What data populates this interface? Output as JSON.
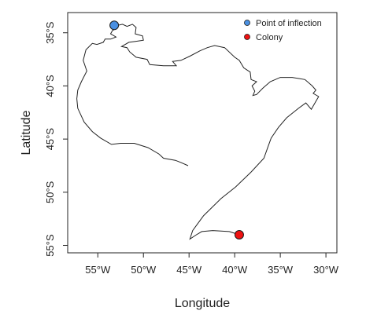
{
  "chart_data": {
    "type": "scatter",
    "xlabel": "Longitude",
    "ylabel": "Latitude",
    "xlim": [
      -58.3,
      -28.8
    ],
    "ylim": [
      -55.7,
      -33.1
    ],
    "x_ticks": [
      {
        "value": -55,
        "label": "55°W"
      },
      {
        "value": -50,
        "label": "50°W"
      },
      {
        "value": -45,
        "label": "45°W"
      },
      {
        "value": -40,
        "label": "40°W"
      },
      {
        "value": -35,
        "label": "35°W"
      },
      {
        "value": -30,
        "label": "30°W"
      }
    ],
    "y_ticks": [
      {
        "value": -35,
        "label": "35°S"
      },
      {
        "value": -40,
        "label": "40°S"
      },
      {
        "value": -45,
        "label": "45°S"
      },
      {
        "value": -50,
        "label": "50°S"
      },
      {
        "value": -55,
        "label": "55°S"
      }
    ],
    "legend": [
      {
        "label": "Point of inflection",
        "color": "#4a90e2"
      },
      {
        "label": "Colony",
        "color": "#ee1111"
      }
    ],
    "legend_position": "top-right",
    "grid": false,
    "points": {
      "inflection": {
        "x": -53.2,
        "y": -34.3
      },
      "colony": {
        "x": -39.5,
        "y": -54.0
      }
    },
    "track": [
      [
        -39.5,
        -54.0
      ],
      [
        -40.6,
        -53.7
      ],
      [
        -42.4,
        -53.6
      ],
      [
        -43.6,
        -53.7
      ],
      [
        -44.2,
        -54.0
      ],
      [
        -44.9,
        -54.4
      ],
      [
        -44.6,
        -53.6
      ],
      [
        -43.4,
        -52.2
      ],
      [
        -41.5,
        -50.6
      ],
      [
        -39.9,
        -49.5
      ],
      [
        -38.2,
        -48.1
      ],
      [
        -36.8,
        -46.8
      ],
      [
        -36.3,
        -45.6
      ],
      [
        -36.0,
        -44.9
      ],
      [
        -35.2,
        -43.9
      ],
      [
        -34.3,
        -43.0
      ],
      [
        -33.0,
        -42.1
      ],
      [
        -32.2,
        -41.6
      ],
      [
        -31.6,
        -42.2
      ],
      [
        -30.8,
        -41.0
      ],
      [
        -31.4,
        -40.7
      ],
      [
        -31.1,
        -40.4
      ],
      [
        -31.5,
        -40.0
      ],
      [
        -32.3,
        -39.4
      ],
      [
        -33.7,
        -39.2
      ],
      [
        -35.0,
        -39.2
      ],
      [
        -36.1,
        -39.6
      ],
      [
        -36.9,
        -40.2
      ],
      [
        -37.6,
        -40.8
      ],
      [
        -38.0,
        -40.9
      ],
      [
        -37.8,
        -40.5
      ],
      [
        -38.1,
        -40.0
      ],
      [
        -37.6,
        -39.6
      ],
      [
        -38.2,
        -39.4
      ],
      [
        -38.3,
        -38.7
      ],
      [
        -39.0,
        -38.3
      ],
      [
        -39.5,
        -37.6
      ],
      [
        -40.0,
        -37.3
      ],
      [
        -41.1,
        -36.4
      ],
      [
        -42.2,
        -36.2
      ],
      [
        -43.0,
        -36.4
      ],
      [
        -43.8,
        -36.7
      ],
      [
        -44.9,
        -37.2
      ],
      [
        -45.9,
        -37.6
      ],
      [
        -46.8,
        -37.7
      ],
      [
        -46.4,
        -38.1
      ],
      [
        -47.8,
        -38.1
      ],
      [
        -49.3,
        -38.0
      ],
      [
        -49.6,
        -37.5
      ],
      [
        -50.8,
        -37.3
      ],
      [
        -51.5,
        -36.8
      ],
      [
        -51.8,
        -36.4
      ],
      [
        -52.4,
        -36.3
      ],
      [
        -51.6,
        -35.9
      ],
      [
        -50.8,
        -35.8
      ],
      [
        -50.0,
        -35.7
      ],
      [
        -50.1,
        -35.3
      ],
      [
        -50.9,
        -35.1
      ],
      [
        -50.8,
        -34.5
      ],
      [
        -51.2,
        -34.2
      ],
      [
        -51.8,
        -34.4
      ],
      [
        -52.3,
        -34.2
      ],
      [
        -52.8,
        -34.3
      ],
      [
        -53.2,
        -34.3
      ],
      [
        -53.0,
        -34.6
      ],
      [
        -53.4,
        -34.8
      ],
      [
        -53.6,
        -35.1
      ],
      [
        -53.0,
        -35.4
      ],
      [
        -53.6,
        -35.6
      ],
      [
        -54.2,
        -35.6
      ],
      [
        -54.4,
        -35.9
      ],
      [
        -55.1,
        -36.1
      ],
      [
        -55.6,
        -36.0
      ],
      [
        -56.3,
        -36.6
      ],
      [
        -56.6,
        -37.6
      ],
      [
        -56.2,
        -38.6
      ],
      [
        -56.8,
        -39.6
      ],
      [
        -57.2,
        -40.4
      ],
      [
        -57.3,
        -41.2
      ],
      [
        -57.2,
        -42.1
      ],
      [
        -56.5,
        -43.4
      ],
      [
        -55.6,
        -44.3
      ],
      [
        -54.7,
        -44.9
      ],
      [
        -53.5,
        -45.5
      ],
      [
        -52.5,
        -45.4
      ],
      [
        -51.0,
        -45.4
      ],
      [
        -49.5,
        -45.8
      ],
      [
        -48.3,
        -46.4
      ],
      [
        -47.8,
        -46.8
      ],
      [
        -46.5,
        -47.0
      ],
      [
        -45.9,
        -47.2
      ],
      [
        -45.1,
        -47.5
      ]
    ]
  }
}
